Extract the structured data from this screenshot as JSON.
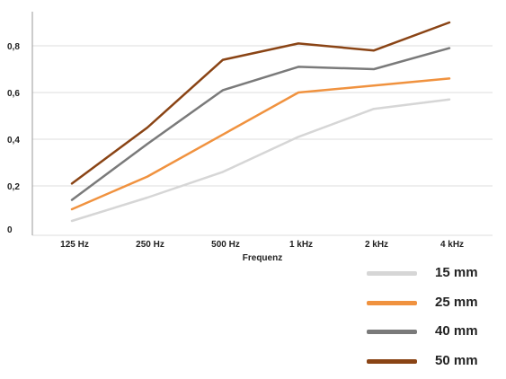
{
  "chart_data": {
    "type": "line",
    "title": "",
    "xlabel": "Frequenz",
    "ylabel": "",
    "categories": [
      "125 Hz",
      "250 Hz",
      "500 Hz",
      "1 kHz",
      "2 kHz",
      "4 kHz"
    ],
    "ylim": [
      0,
      0.9
    ],
    "yticks": [
      0,
      0.2,
      0.4,
      0.6,
      0.8
    ],
    "ytick_labels": [
      "0",
      "0,2",
      "0,4",
      "0,6",
      "0,8"
    ],
    "grid": true,
    "legend_position": "bottom-right",
    "series": [
      {
        "name": "15 mm",
        "color": "#d6d6d6",
        "values": [
          0.05,
          0.15,
          0.26,
          0.41,
          0.53,
          0.57
        ]
      },
      {
        "name": "25 mm",
        "color": "#f0923f",
        "values": [
          0.1,
          0.24,
          0.42,
          0.6,
          0.63,
          0.66
        ]
      },
      {
        "name": "40 mm",
        "color": "#7a7a7a",
        "values": [
          0.14,
          0.38,
          0.61,
          0.71,
          0.7,
          0.79
        ]
      },
      {
        "name": "50 mm",
        "color": "#8a4415",
        "values": [
          0.21,
          0.45,
          0.74,
          0.81,
          0.78,
          0.9
        ]
      }
    ]
  }
}
